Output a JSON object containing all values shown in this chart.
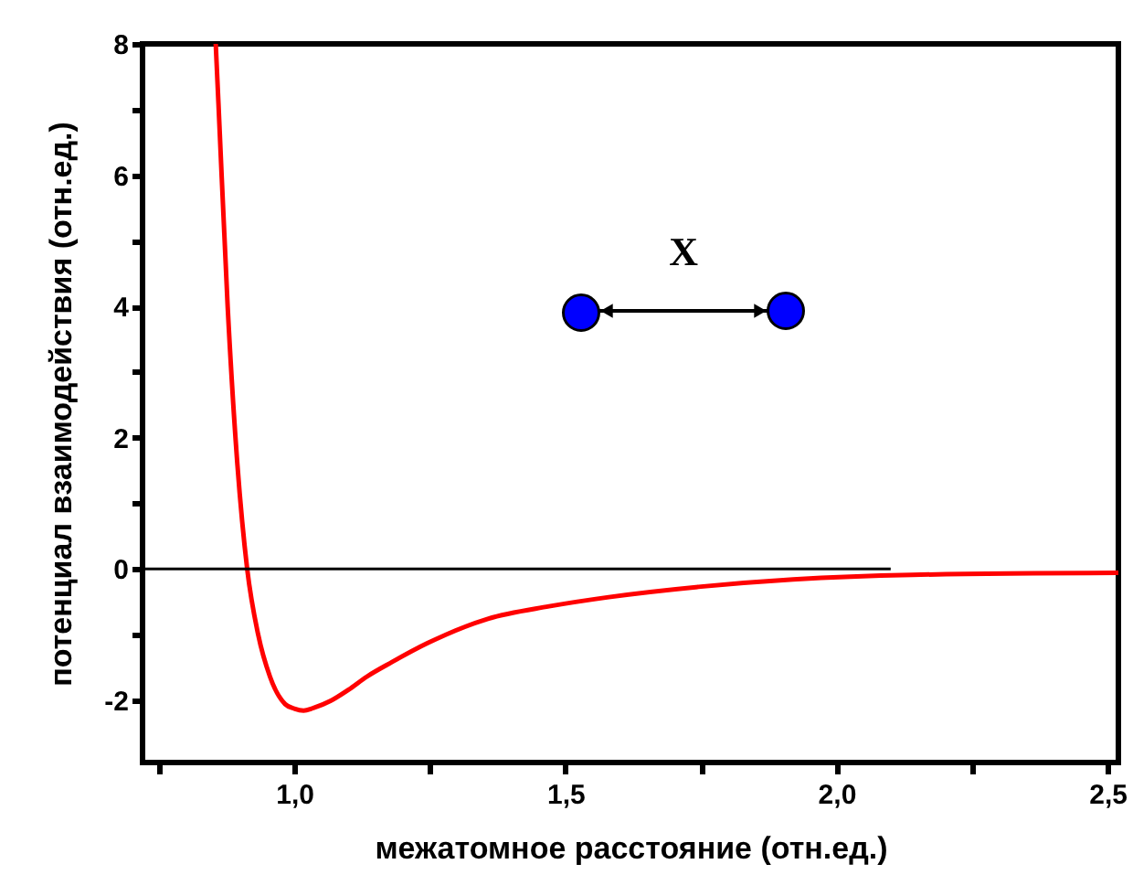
{
  "chart_data": {
    "type": "line",
    "xlabel": "межатомное расстояние (отн.ед.)",
    "ylabel": "потенциал взаимодействия (отн.ед.)",
    "xlim": [
      0.72,
      2.52
    ],
    "ylim": [
      -2.95,
      8
    ],
    "xticks": [
      {
        "value": 0.75,
        "label": null
      },
      {
        "value": 1.0,
        "label": "1,0"
      },
      {
        "value": 1.25,
        "label": null
      },
      {
        "value": 1.5,
        "label": "1,5"
      },
      {
        "value": 1.75,
        "label": null
      },
      {
        "value": 2.0,
        "label": "2,0"
      },
      {
        "value": 2.25,
        "label": null
      },
      {
        "value": 2.5,
        "label": "2,5"
      }
    ],
    "yticks": [
      -2,
      {
        "value": -1,
        "label": null
      },
      0,
      {
        "value": 1,
        "label": null
      },
      2,
      {
        "value": 3,
        "label": null
      },
      4,
      {
        "value": 5,
        "label": null
      },
      6,
      {
        "value": 7,
        "label": null
      },
      8
    ],
    "series": [
      {
        "color": "#ff0000",
        "x": [
          0.855,
          0.86,
          0.877,
          0.894,
          0.913,
          0.933,
          0.955,
          0.983,
          1.0,
          1.017,
          1.035,
          1.067,
          1.1,
          1.134,
          1.18,
          1.246,
          1.357,
          1.47,
          1.58,
          1.75,
          1.92,
          2.14,
          2.52
        ],
        "values": [
          8,
          7.1,
          4.0,
          1.7,
          0,
          -0.99,
          -1.64,
          -2.06,
          -2.13,
          -2.16,
          -2.12,
          -2.01,
          -1.84,
          -1.64,
          -1.42,
          -1.13,
          -0.76,
          -0.57,
          -0.43,
          -0.27,
          -0.16,
          -0.09,
          -0.06
        ]
      },
      {
        "color": "#000000",
        "x": [
          0.72,
          2.1
        ],
        "values": [
          0,
          0
        ]
      }
    ],
    "annotations": [
      "X"
    ],
    "grid": false,
    "line_style": "solid",
    "marker": "none"
  }
}
